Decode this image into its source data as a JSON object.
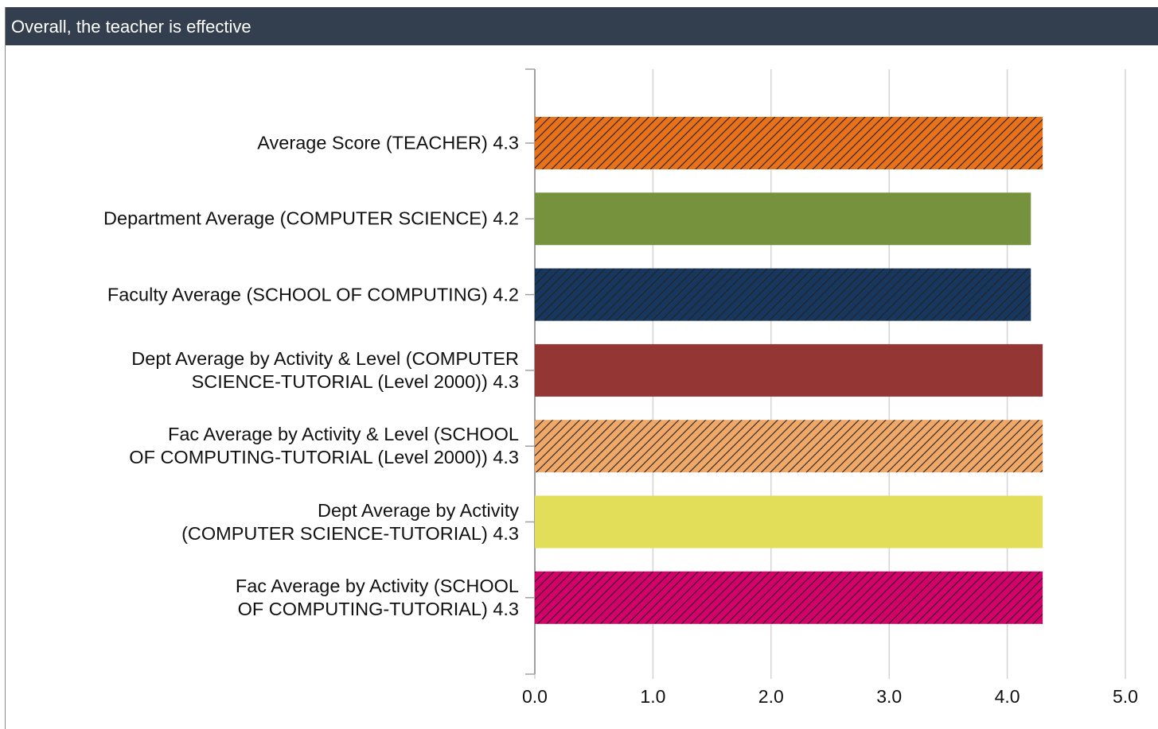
{
  "header": {
    "title": "Overall, the teacher is effective"
  },
  "chart_data": {
    "type": "barh",
    "categories": [
      "Average Score (TEACHER) 4.3",
      "Department Average (COMPUTER SCIENCE) 4.2",
      "Faculty Average (SCHOOL OF COMPUTING) 4.2",
      "Dept Average by Activity & Level (COMPUTER\nSCIENCE-TUTORIAL (Level 2000)) 4.3",
      "Fac Average by Activity & Level (SCHOOL\nOF COMPUTING-TUTORIAL (Level 2000)) 4.3",
      "Dept Average by Activity\n(COMPUTER SCIENCE-TUTORIAL) 4.3",
      "Fac Average by Activity (SCHOOL\nOF COMPUTING-TUTORIAL) 4.3"
    ],
    "values": [
      4.3,
      4.2,
      4.2,
      4.3,
      4.3,
      4.3,
      4.3
    ],
    "colors": [
      "#e8711a",
      "#76923c",
      "#17375e",
      "#943634",
      "#f0a868",
      "#e2de5a",
      "#d6006a"
    ],
    "hatched": [
      true,
      false,
      true,
      false,
      true,
      false,
      true
    ],
    "xlim": [
      0,
      5
    ],
    "xticks": [
      {
        "value": 0,
        "label": "0.0"
      },
      {
        "value": 1,
        "label": "1.0"
      },
      {
        "value": 2,
        "label": "2.0"
      },
      {
        "value": 3,
        "label": "3.0"
      },
      {
        "value": 4,
        "label": "4.0"
      },
      {
        "value": 5,
        "label": "5.0"
      }
    ],
    "grid": true
  }
}
